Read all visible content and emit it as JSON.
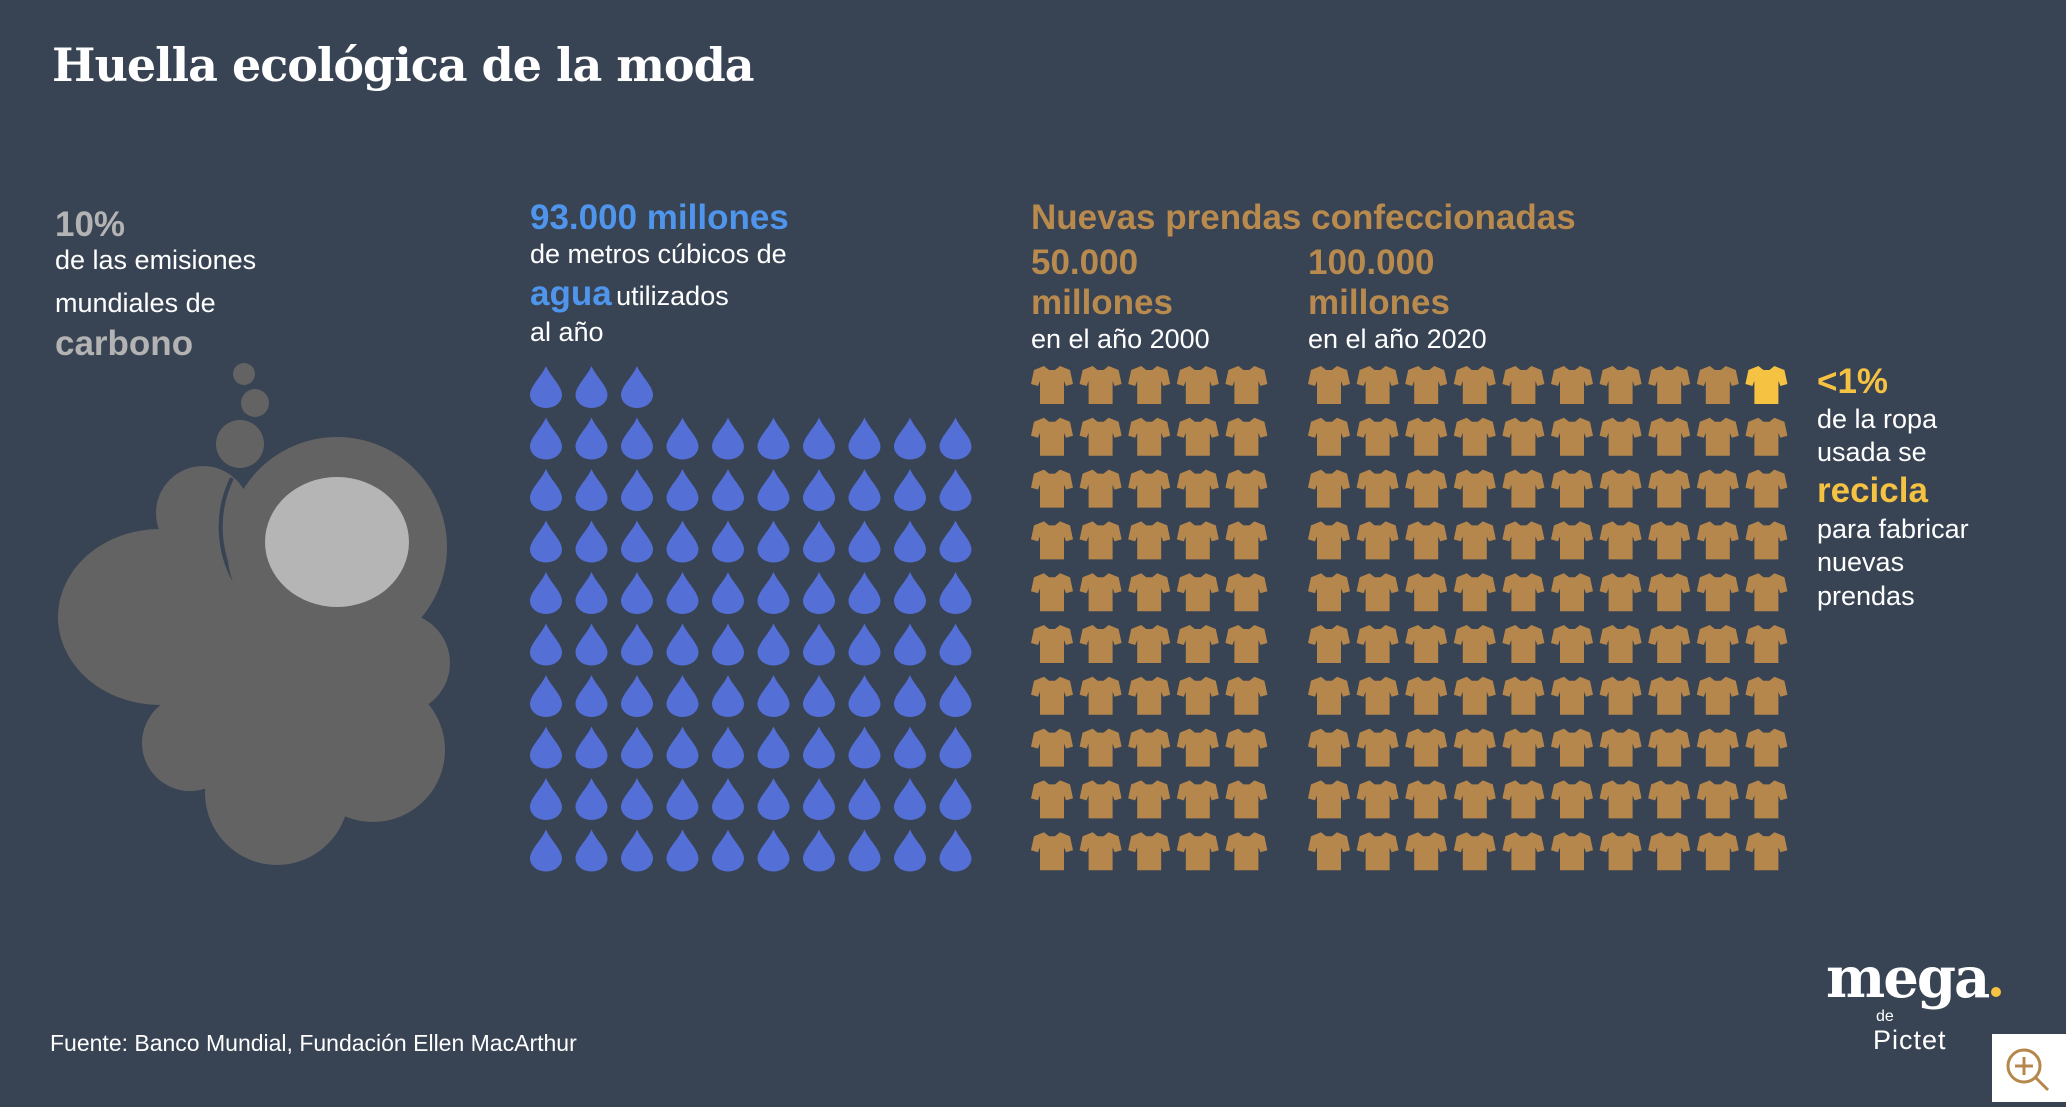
{
  "title": "Huella ecológica de la moda",
  "carbon": {
    "value": "10%",
    "line1": "de las emisiones",
    "line2": "mundiales de",
    "highlight": "carbono"
  },
  "water": {
    "value": "93.000 millones",
    "line1": "de metros cúbicos de",
    "highlight": "agua",
    "line2_rest": "utilizados",
    "line3": "al año",
    "drop_count": 93
  },
  "garments": {
    "heading": "Nuevas prendas confeccionadas",
    "year2000": {
      "value": "50.000",
      "unit": "millones",
      "label": "en el año 2000",
      "icon_count": 50
    },
    "year2020": {
      "value": "100.000",
      "unit": "millones",
      "label": "en el año 2020",
      "icon_count": 100,
      "highlighted_count": 1
    }
  },
  "recycle": {
    "value": "<1%",
    "line1": "de la ropa",
    "line2": "usada se",
    "highlight": "recicla",
    "line3": "para fabricar",
    "line4": "nuevas",
    "line5": "prendas"
  },
  "source": "Fuente: Banco Mundial, Fundación Ellen MacArthur",
  "logo": {
    "main": "mega",
    "de": "de",
    "brand": "Pictet"
  },
  "colors": {
    "background": "#384354",
    "cloud": "#636363",
    "sun": "#b5b5b5",
    "drop": "#5470d6",
    "shirt": "#b5874c",
    "highlight": "#f5c242"
  }
}
